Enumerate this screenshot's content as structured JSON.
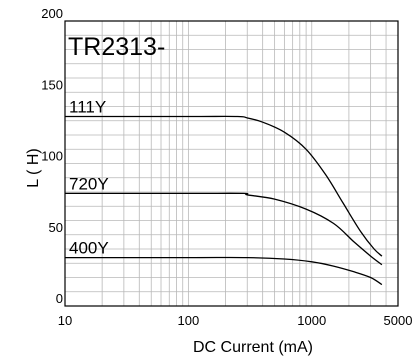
{
  "chart_data": {
    "type": "line",
    "title": "TR2313-",
    "xlabel": "DC Current (mA)",
    "ylabel": "L ( H)",
    "x_scale": "log",
    "xlim": [
      10,
      5000
    ],
    "ylim": [
      0,
      200
    ],
    "x_ticks": [
      10,
      100,
      1000,
      5000
    ],
    "x_tick_labels": [
      "10",
      "100",
      "1000",
      "5000"
    ],
    "y_ticks": [
      0,
      50,
      100,
      150,
      200
    ],
    "y_tick_labels": [
      "0",
      "50",
      "100",
      "150",
      "200"
    ],
    "grid": true,
    "series": [
      {
        "name": "111Y",
        "x": [
          10,
          100,
          250,
          300,
          400,
          600,
          900,
          1300,
          1800,
          2500,
          3200,
          3700
        ],
        "y": [
          133,
          133,
          133,
          132,
          129,
          122,
          110,
          92,
          72,
          52,
          40,
          35
        ]
      },
      {
        "name": "720Y",
        "x": [
          10,
          100,
          280,
          300,
          500,
          900,
          1500,
          2200,
          3000,
          3700
        ],
        "y": [
          79,
          79,
          79,
          78,
          75,
          68,
          58,
          45,
          35,
          29
        ]
      },
      {
        "name": "400Y",
        "x": [
          10,
          100,
          300,
          600,
          1000,
          1500,
          2200,
          3000,
          3700
        ],
        "y": [
          34,
          34,
          34,
          33,
          31,
          28,
          24,
          20,
          15
        ]
      }
    ]
  }
}
